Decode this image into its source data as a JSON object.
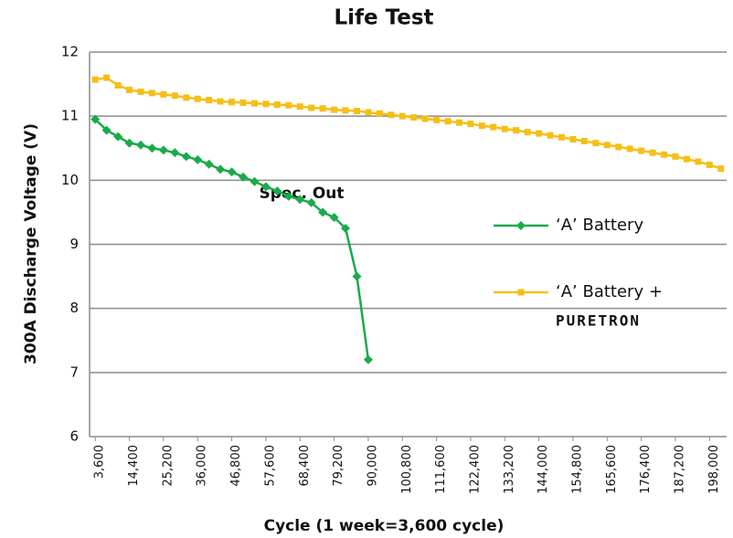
{
  "chart_data": {
    "type": "line",
    "title": "Life Test",
    "x_label": "Cycle (1 week=3,600 cycle)",
    "y_label": "300A Discharge Voltage (V)",
    "annotation": "Spec. Out",
    "x": [
      3600,
      7200,
      10800,
      14400,
      18000,
      21600,
      25200,
      28800,
      32400,
      36000,
      39600,
      43200,
      46800,
      50400,
      54000,
      57600,
      61200,
      64800,
      68400,
      72000,
      75600,
      79200,
      82800,
      86400,
      90000,
      93600,
      97200,
      100800,
      104400,
      108000,
      111600,
      115200,
      118800,
      122400,
      126000,
      129600,
      133200,
      136800,
      140400,
      144000,
      147600,
      151200,
      154800,
      158400,
      162000,
      165600,
      169200,
      172800,
      176400,
      180000,
      183600,
      187200,
      190800,
      194400,
      198000,
      201600
    ],
    "series": [
      {
        "name": "‘A’ Battery",
        "color": "#1aaa4a",
        "marker": "diamond",
        "values": [
          10.95,
          10.78,
          10.68,
          10.58,
          10.55,
          10.5,
          10.47,
          10.43,
          10.37,
          10.32,
          10.25,
          10.17,
          10.13,
          10.05,
          9.98,
          9.9,
          9.83,
          9.75,
          9.7,
          9.65,
          9.5,
          9.42,
          9.25,
          8.5,
          7.2,
          null,
          null,
          null,
          null,
          null,
          null,
          null,
          null,
          null,
          null,
          null,
          null,
          null,
          null,
          null,
          null,
          null,
          null,
          null,
          null,
          null,
          null,
          null,
          null,
          null,
          null,
          null,
          null,
          null,
          null,
          null
        ]
      },
      {
        "name": "‘A’ Battery +",
        "name_logo": "PURETRON",
        "color": "#f5bf18",
        "marker": "square",
        "values": [
          11.57,
          11.6,
          11.48,
          11.41,
          11.38,
          11.36,
          11.34,
          11.32,
          11.29,
          11.27,
          11.25,
          11.23,
          11.22,
          11.21,
          11.2,
          11.19,
          11.18,
          11.17,
          11.15,
          11.13,
          11.12,
          11.1,
          11.09,
          11.08,
          11.06,
          11.04,
          11.02,
          11.0,
          10.98,
          10.96,
          10.94,
          10.92,
          10.9,
          10.88,
          10.85,
          10.83,
          10.8,
          10.78,
          10.75,
          10.73,
          10.7,
          10.67,
          10.64,
          10.61,
          10.58,
          10.55,
          10.52,
          10.49,
          10.46,
          10.43,
          10.4,
          10.37,
          10.33,
          10.29,
          10.24,
          10.18
        ]
      }
    ],
    "xlim": [
      1800,
      203400
    ],
    "xticks": [
      {
        "value": 3600,
        "label": "3,600"
      },
      {
        "value": 14400,
        "label": "14,400"
      },
      {
        "value": 25200,
        "label": "25,200"
      },
      {
        "value": 36000,
        "label": "36,000"
      },
      {
        "value": 46800,
        "label": "46,800"
      },
      {
        "value": 57600,
        "label": "57,600"
      },
      {
        "value": 68400,
        "label": "68,400"
      },
      {
        "value": 79200,
        "label": "79,200"
      },
      {
        "value": 90000,
        "label": "90,000"
      },
      {
        "value": 100800,
        "label": "100,800"
      },
      {
        "value": 111600,
        "label": "111,600"
      },
      {
        "value": 122400,
        "label": "122,400"
      },
      {
        "value": 133200,
        "label": "133,200"
      },
      {
        "value": 144000,
        "label": "144,000"
      },
      {
        "value": 154800,
        "label": "154,800"
      },
      {
        "value": 165600,
        "label": "165,600"
      },
      {
        "value": 176400,
        "label": "176,400"
      },
      {
        "value": 187200,
        "label": "187,200"
      },
      {
        "value": 198000,
        "label": "198,000"
      }
    ],
    "ylim": [
      6,
      12
    ],
    "yticks": [
      6,
      7,
      8,
      9,
      10,
      11,
      12
    ],
    "grid": true,
    "legend": "right"
  }
}
